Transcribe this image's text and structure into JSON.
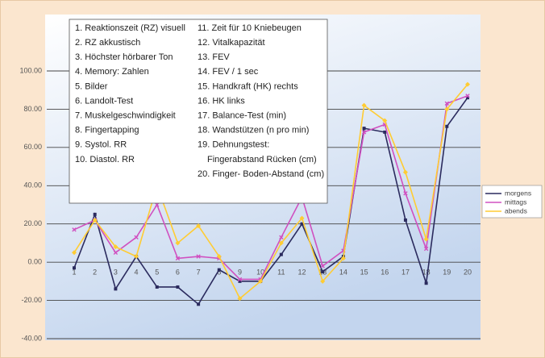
{
  "chart_data": {
    "type": "line",
    "categories": [
      "1",
      "2",
      "3",
      "4",
      "5",
      "6",
      "7",
      "8",
      "9",
      "10",
      "11",
      "12",
      "13",
      "14",
      "15",
      "16",
      "17",
      "18",
      "19",
      "20"
    ],
    "series": [
      {
        "name": "morgens",
        "color": "#2b2b5e",
        "values": [
          -3,
          25,
          -14,
          3,
          -13,
          -13,
          -22,
          -4,
          -10,
          -10,
          4,
          20,
          -5,
          3,
          70,
          68,
          22,
          -11,
          71,
          86
        ]
      },
      {
        "name": "mittags",
        "color": "#d050c0",
        "values": [
          17,
          22,
          5,
          13,
          30,
          2,
          3,
          2,
          -9,
          -9,
          13,
          34,
          -2,
          6,
          68,
          72,
          36,
          7,
          83,
          87
        ]
      },
      {
        "name": "abends",
        "color": "#ffcc33",
        "values": [
          5,
          22,
          8,
          3,
          40,
          10,
          19,
          3,
          -19,
          -10,
          10,
          23,
          -10,
          2,
          82,
          74,
          47,
          12,
          80,
          93
        ]
      }
    ],
    "ylim": [
      -40,
      100
    ],
    "yticks": [
      {
        "value": 100,
        "label": "100.00"
      },
      {
        "value": 80,
        "label": "80.00"
      },
      {
        "value": 60,
        "label": "60.00"
      },
      {
        "value": 40,
        "label": "40.00"
      },
      {
        "value": 20,
        "label": "20.00"
      },
      {
        "value": 0,
        "label": "0.00"
      },
      {
        "value": -20,
        "label": "-20.00"
      },
      {
        "value": -40,
        "label": "-40.00"
      }
    ],
    "grid": true,
    "legend": "right",
    "annotations": [
      "1. Reaktionszeit (RZ) visuell",
      "2. RZ akkustisch",
      "3. Höchster hörbarer Ton",
      "4. Memory:  Zahlen",
      "5. Bilder",
      "6. Landolt-Test",
      "7. Muskelgeschwindigkeit",
      "8. Fingertapping",
      "9. Systol. RR",
      "10. Diastol. RR",
      "11. Zeit für 10 Kniebeugen",
      "12. Vitalkapazität",
      "13. FEV",
      "14. FEV / 1 sec",
      "15. Handkraft (HK) rechts",
      "16. HK links",
      "17. Balance-Test (min)",
      "18. Wandstützen (n pro min)",
      "19. Dehnungstest:",
      "Fingerabstand Rücken (cm)",
      "20. Finger- Boden-Abstand (cm)"
    ]
  }
}
